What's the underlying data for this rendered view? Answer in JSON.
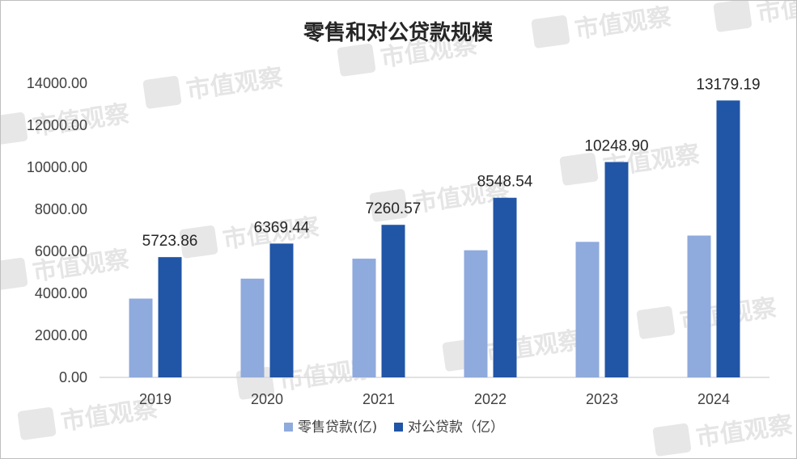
{
  "watermark": {
    "text": "市值观察"
  },
  "chart_data": {
    "type": "bar",
    "title": "零售和对公贷款规模",
    "categories": [
      "2019",
      "2020",
      "2021",
      "2022",
      "2023",
      "2024"
    ],
    "y_ticks": [
      "0.00",
      "2000.00",
      "4000.00",
      "6000.00",
      "8000.00",
      "10000.00",
      "12000.00",
      "14000.00"
    ],
    "ylim": [
      0,
      14000
    ],
    "grid": false,
    "legend_position": "bottom",
    "series": [
      {
        "name": "零售贷款(亿)",
        "color": "#8faadc",
        "values": [
          3750,
          4700,
          5650,
          6050,
          6450,
          6750
        ],
        "show_labels": false
      },
      {
        "name": "对公贷款（亿）",
        "color": "#2155a6",
        "values": [
          5723.86,
          6369.44,
          7260.57,
          8548.54,
          10248.9,
          13179.19
        ],
        "labels": [
          "5723.86",
          "6369.44",
          "7260.57",
          "8548.54",
          "10248.90",
          "13179.19"
        ],
        "show_labels": true
      }
    ]
  }
}
